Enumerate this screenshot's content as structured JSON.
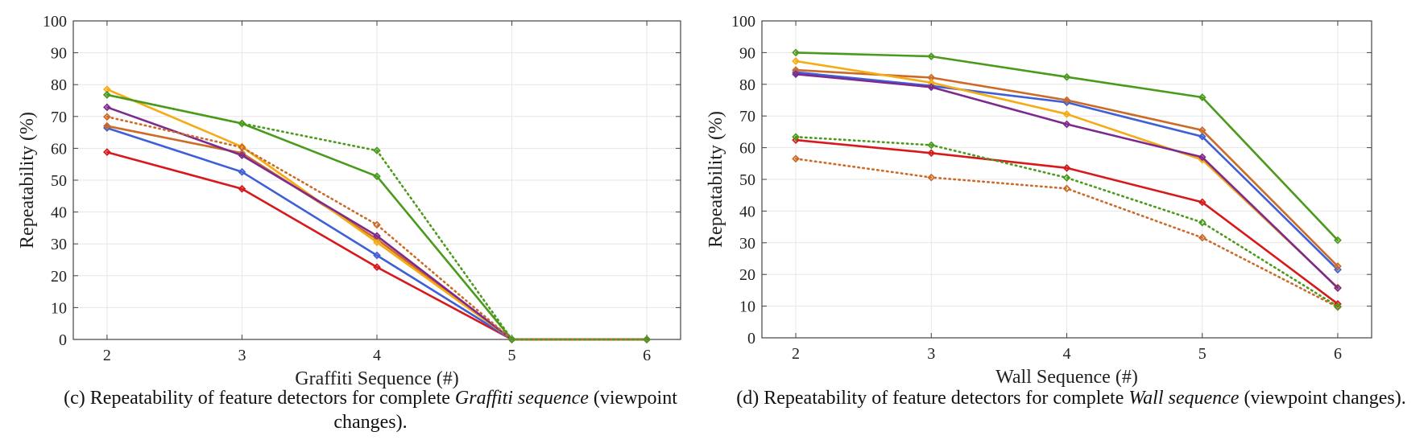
{
  "colors": {
    "red": "#d7191c",
    "blue": "#3f5fd6",
    "orange": "#cc6a28",
    "yellow": "#f5ab14",
    "green": "#4a9a1c",
    "purple": "#7d2a8e",
    "axis": "#444444",
    "grid": "#e6e6e6"
  },
  "chart_data": [
    {
      "type": "line",
      "xlabel": "Graffiti Sequence (#)",
      "ylabel": "Repeatability (%)",
      "xlim": [
        1.75,
        6.25
      ],
      "ylim": [
        0,
        100
      ],
      "x_ticks": [
        "2",
        "3",
        "4",
        "5",
        "6"
      ],
      "y_ticks": [
        "0",
        "10",
        "20",
        "30",
        "40",
        "50",
        "60",
        "70",
        "80",
        "90",
        "100"
      ],
      "grid": true,
      "legend": "none",
      "caption": {
        "before": "(c) Repeatability of feature detectors for complete ",
        "italic": "Graffiti sequence",
        "after": " (viewpoint changes)."
      },
      "series": [
        {
          "color": "red",
          "style": "solid",
          "x": [
            2,
            3,
            4,
            5,
            6
          ],
          "values": [
            58.8,
            47.3,
            22.7,
            0,
            0
          ]
        },
        {
          "color": "blue",
          "style": "solid",
          "x": [
            2,
            3,
            4,
            5,
            6
          ],
          "values": [
            66.4,
            52.6,
            26.4,
            0,
            0
          ]
        },
        {
          "color": "orange",
          "style": "solid",
          "x": [
            2,
            3,
            4,
            5,
            6
          ],
          "values": [
            67.0,
            58.5,
            31.5,
            0,
            0
          ]
        },
        {
          "color": "yellow",
          "style": "solid",
          "x": [
            2,
            3,
            4,
            5,
            6
          ],
          "values": [
            78.5,
            60.5,
            30.5,
            0,
            0
          ]
        },
        {
          "color": "green",
          "style": "solid",
          "x": [
            2,
            3,
            4,
            5,
            6
          ],
          "values": [
            76.8,
            67.8,
            51.2,
            0,
            0
          ]
        },
        {
          "color": "purple",
          "style": "solid",
          "x": [
            2,
            3,
            4,
            5,
            6
          ],
          "values": [
            72.9,
            57.8,
            32.5,
            0,
            0
          ]
        },
        {
          "color": "orange",
          "style": "dotted",
          "x": [
            2,
            3,
            4,
            5,
            6
          ],
          "values": [
            69.9,
            60.3,
            36.0,
            0,
            0
          ]
        },
        {
          "color": "green",
          "style": "dotted",
          "x": [
            2,
            3,
            4,
            5,
            6
          ],
          "values": [
            76.8,
            67.8,
            59.3,
            0,
            0
          ]
        }
      ]
    },
    {
      "type": "line",
      "xlabel": "Wall Sequence (#)",
      "ylabel": "Repeatability (%)",
      "xlim": [
        1.75,
        6.25
      ],
      "ylim": [
        0,
        100
      ],
      "x_ticks": [
        "2",
        "3",
        "4",
        "5",
        "6"
      ],
      "y_ticks": [
        "0",
        "10",
        "20",
        "30",
        "40",
        "50",
        "60",
        "70",
        "80",
        "90",
        "100"
      ],
      "grid": true,
      "legend": "none",
      "caption": {
        "before": "(d) Repeatability of feature detectors for complete ",
        "italic": "Wall sequence",
        "after": " (viewpoint changes)."
      },
      "series": [
        {
          "color": "red",
          "style": "solid",
          "x": [
            2,
            3,
            4,
            5,
            6
          ],
          "values": [
            62.4,
            58.3,
            53.6,
            42.8,
            10.7
          ]
        },
        {
          "color": "blue",
          "style": "solid",
          "x": [
            2,
            3,
            4,
            5,
            6
          ],
          "values": [
            83.8,
            79.5,
            74.3,
            63.5,
            21.5
          ]
        },
        {
          "color": "orange",
          "style": "solid",
          "x": [
            2,
            3,
            4,
            5,
            6
          ],
          "values": [
            84.5,
            82.1,
            75.0,
            65.5,
            22.6
          ]
        },
        {
          "color": "yellow",
          "style": "solid",
          "x": [
            2,
            3,
            4,
            5,
            6
          ],
          "values": [
            87.3,
            80.5,
            70.6,
            56.2,
            15.9
          ]
        },
        {
          "color": "green",
          "style": "solid",
          "x": [
            2,
            3,
            4,
            5,
            6
          ],
          "values": [
            90.0,
            88.8,
            82.3,
            75.9,
            30.8
          ]
        },
        {
          "color": "purple",
          "style": "solid",
          "x": [
            2,
            3,
            4,
            5,
            6
          ],
          "values": [
            83.2,
            79.1,
            67.4,
            57.0,
            15.7
          ]
        },
        {
          "color": "orange",
          "style": "dotted",
          "x": [
            2,
            3,
            4,
            5,
            6
          ],
          "values": [
            56.5,
            50.6,
            47.1,
            31.6,
            9.7
          ]
        },
        {
          "color": "green",
          "style": "dotted",
          "x": [
            2,
            3,
            4,
            5,
            6
          ],
          "values": [
            63.4,
            60.8,
            50.5,
            36.4,
            9.9
          ]
        }
      ]
    }
  ]
}
